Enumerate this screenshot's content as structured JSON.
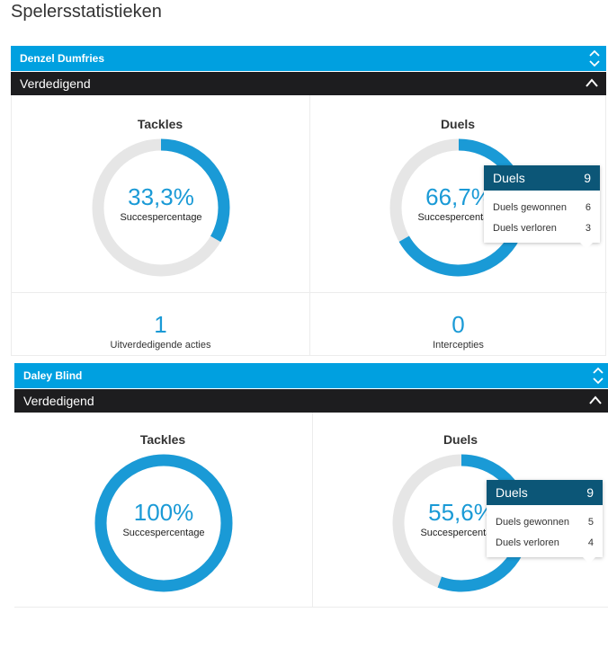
{
  "page": {
    "title": "Spelersstatistieken"
  },
  "colors": {
    "accent": "#00a0e0",
    "donut_fill": "#1a9ad6",
    "donut_track": "#e6e6e6",
    "category_bar": "#1d1d1f",
    "tooltip_header": "#0c5677"
  },
  "players": [
    {
      "name": "Denzel Dumfries",
      "category": "Verdedigend",
      "tackles": {
        "title": "Tackles",
        "percent": 33.3,
        "value_text": "33,3%",
        "sub": "Succespercentage"
      },
      "duels": {
        "title": "Duels",
        "percent": 66.7,
        "value_text": "66,7%",
        "sub": "Succespercentage",
        "tooltip": {
          "title": "Duels",
          "total": "9",
          "rows": [
            {
              "label": "Duels gewonnen",
              "value": "6"
            },
            {
              "label": "Duels verloren",
              "value": "3"
            }
          ]
        }
      },
      "counts": [
        {
          "value": "1",
          "label": "Uitverdedigende acties"
        },
        {
          "value": "0",
          "label": "Intercepties"
        }
      ]
    },
    {
      "name": "Daley Blind",
      "category": "Verdedigend",
      "tackles": {
        "title": "Tackles",
        "percent": 100,
        "value_text": "100%",
        "sub": "Succespercentage"
      },
      "duels": {
        "title": "Duels",
        "percent": 55.6,
        "value_text": "55,6%",
        "sub": "Succespercentage",
        "tooltip": {
          "title": "Duels",
          "total": "9",
          "rows": [
            {
              "label": "Duels gewonnen",
              "value": "5"
            },
            {
              "label": "Duels verloren",
              "value": "4"
            }
          ]
        }
      }
    }
  ]
}
